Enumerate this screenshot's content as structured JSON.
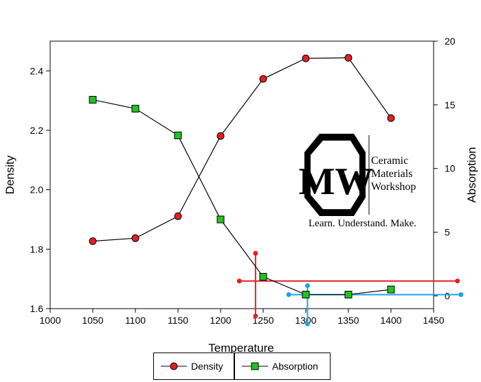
{
  "chart_data": {
    "type": "line",
    "xlabel": "Temperature",
    "ylabel": "Density",
    "y2label": "Absorption",
    "xlim": [
      1000,
      1450
    ],
    "ylim": [
      1.6,
      2.5
    ],
    "y2lim": [
      -1,
      20
    ],
    "x_ticks": [
      "1000",
      "1050",
      "1100",
      "1150",
      "1200",
      "1250",
      "1300",
      "1350",
      "1400",
      "1450"
    ],
    "y_ticks": [
      "1.6",
      "1.8",
      "2.0",
      "2.2",
      "2.4"
    ],
    "y2_ticks": [
      "0",
      "5",
      "10",
      "15",
      "20"
    ],
    "x": [
      1050,
      1100,
      1150,
      1200,
      1250,
      1300,
      1350,
      1400
    ],
    "series": [
      {
        "name": "Density",
        "axis": "left",
        "marker": "circle",
        "color": "#e31e24",
        "values": [
          1.827,
          1.837,
          1.911,
          2.181,
          2.373,
          2.442,
          2.444,
          2.241
        ]
      },
      {
        "name": "Absorption",
        "axis": "right",
        "marker": "square",
        "color": "#22c222",
        "values": [
          15.4,
          14.7,
          12.6,
          6.0,
          1.5,
          0.1,
          0.1,
          0.5
        ]
      }
    ],
    "crosshairs": [
      {
        "color": "#e31e24",
        "x": 1241,
        "y": 1.693,
        "x_from": 1222,
        "x_to": 1478,
        "y_from": 1.575,
        "y_to": 1.786
      },
      {
        "color": "#1aa3e8",
        "x": 1302,
        "y2": 0.1,
        "x_from": 1280,
        "x_to": 1482,
        "y2_from": -2.2,
        "y2_to": 0.8
      }
    ],
    "legend_position": "bottom",
    "grid": false
  },
  "logo": {
    "letters": "MW",
    "line1": "Ceramic",
    "line2": "Materials",
    "line3": "Workshop",
    "tagline": "Learn. Understand. Make."
  }
}
